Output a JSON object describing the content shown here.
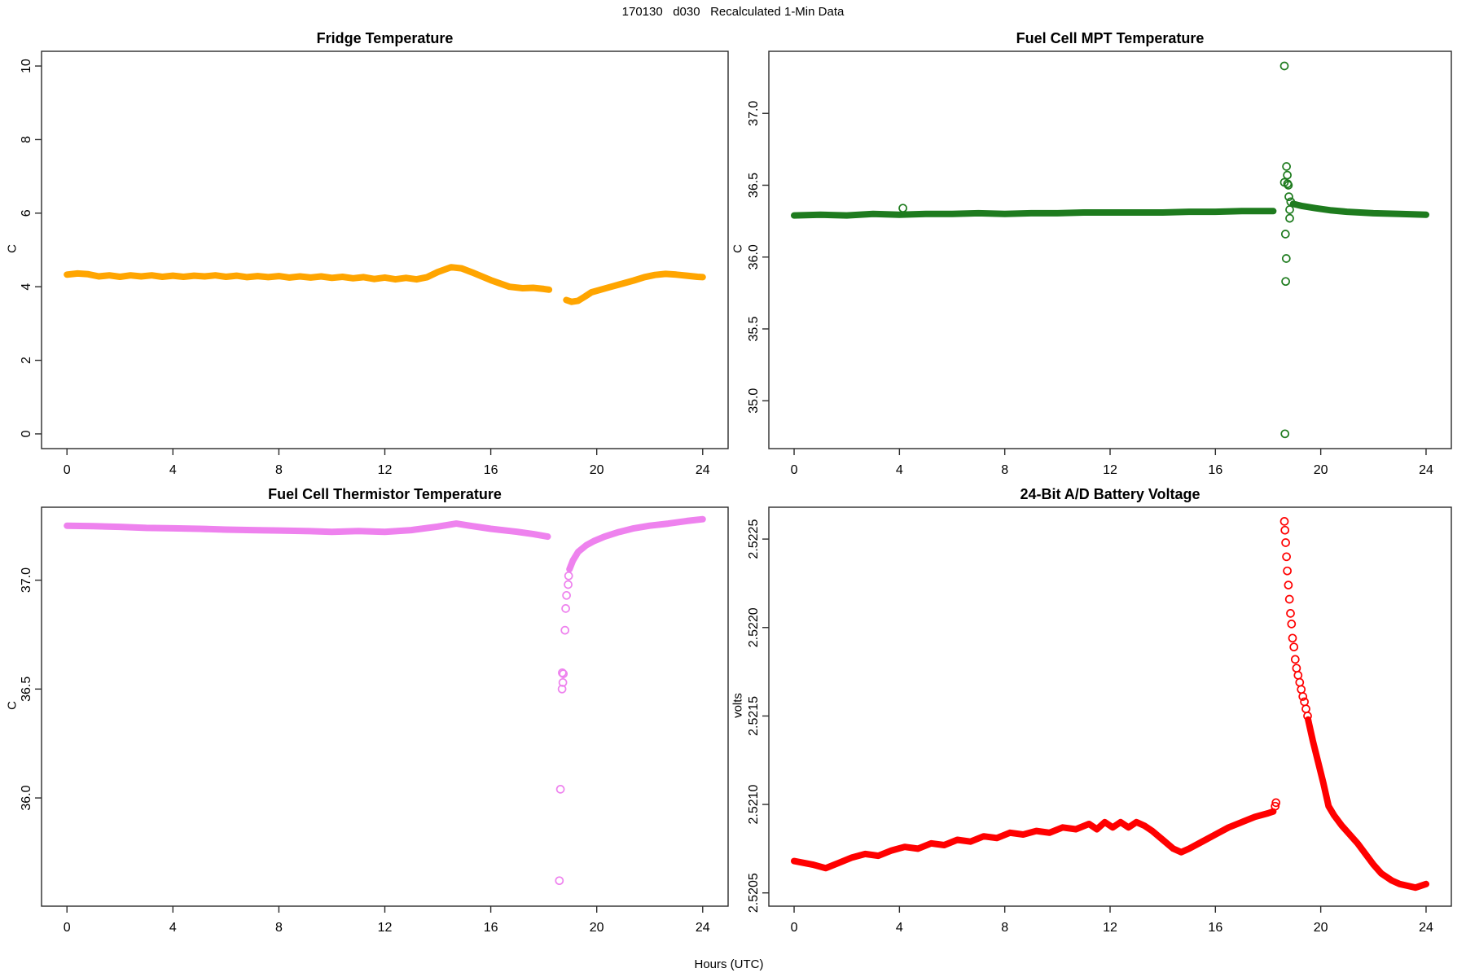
{
  "figure": {
    "main_title": "170130   d030   Recalculated 1-Min Data",
    "shared_xlabel": "Hours (UTC)",
    "background_color": "#ffffff",
    "axis_color": "#2b2b2b"
  },
  "chart_data": [
    {
      "id": "fridge",
      "position": "top-left",
      "type": "scatter",
      "title": "Fridge Temperature",
      "ylabel": "C",
      "point_color": "#FFA500",
      "x_ticks": [
        "0",
        "4",
        "8",
        "12",
        "16",
        "20",
        "24"
      ],
      "x_tick_values": [
        0,
        4,
        8,
        12,
        16,
        20,
        24
      ],
      "y_ticks": [
        "0",
        "2",
        "4",
        "6",
        "8",
        "10"
      ],
      "y_tick_values": [
        0,
        2,
        4,
        6,
        8,
        10
      ],
      "xlim": [
        -0.96,
        24.96
      ],
      "ylim": [
        -0.4,
        10.4
      ],
      "grid": false,
      "data_gap_hours": [
        18.2,
        18.85
      ],
      "line_segments": [
        [
          [
            0,
            4.33
          ],
          [
            0.4,
            4.36
          ],
          [
            0.8,
            4.34
          ],
          [
            1.2,
            4.28
          ],
          [
            1.6,
            4.31
          ],
          [
            2,
            4.27
          ],
          [
            2.4,
            4.31
          ],
          [
            2.8,
            4.28
          ],
          [
            3.2,
            4.31
          ],
          [
            3.6,
            4.27
          ],
          [
            4,
            4.3
          ],
          [
            4.4,
            4.27
          ],
          [
            4.8,
            4.3
          ],
          [
            5.2,
            4.28
          ],
          [
            5.6,
            4.31
          ],
          [
            6,
            4.27
          ],
          [
            6.4,
            4.3
          ],
          [
            6.8,
            4.26
          ],
          [
            7.2,
            4.29
          ],
          [
            7.6,
            4.26
          ],
          [
            8,
            4.29
          ],
          [
            8.4,
            4.25
          ],
          [
            8.8,
            4.28
          ],
          [
            9.2,
            4.25
          ],
          [
            9.6,
            4.28
          ],
          [
            10,
            4.24
          ],
          [
            10.4,
            4.27
          ],
          [
            10.8,
            4.23
          ],
          [
            11.2,
            4.26
          ],
          [
            11.6,
            4.21
          ],
          [
            12,
            4.25
          ],
          [
            12.4,
            4.2
          ],
          [
            12.8,
            4.24
          ],
          [
            13.2,
            4.2
          ],
          [
            13.6,
            4.26
          ],
          [
            14,
            4.4
          ],
          [
            14.5,
            4.53
          ],
          [
            14.9,
            4.5
          ],
          [
            15.3,
            4.39
          ],
          [
            16,
            4.18
          ],
          [
            16.7,
            4.0
          ],
          [
            17.2,
            3.96
          ],
          [
            17.6,
            3.97
          ],
          [
            18,
            3.94
          ],
          [
            18.2,
            3.92
          ]
        ],
        [
          [
            18.85,
            3.64
          ],
          [
            19.05,
            3.59
          ],
          [
            19.3,
            3.62
          ],
          [
            19.55,
            3.73
          ],
          [
            19.8,
            3.85
          ],
          [
            20.2,
            3.93
          ],
          [
            20.6,
            4.01
          ],
          [
            21,
            4.09
          ],
          [
            21.4,
            4.17
          ],
          [
            21.8,
            4.26
          ],
          [
            22.2,
            4.32
          ],
          [
            22.6,
            4.35
          ],
          [
            23,
            4.33
          ],
          [
            23.4,
            4.3
          ],
          [
            23.8,
            4.27
          ],
          [
            24,
            4.26
          ]
        ]
      ],
      "outlier_points": []
    },
    {
      "id": "mpt",
      "position": "top-right",
      "type": "scatter",
      "title": "Fuel Cell MPT Temperature",
      "ylabel": "C",
      "point_color": "#1E7B1E",
      "x_ticks": [
        "0",
        "4",
        "8",
        "12",
        "16",
        "20",
        "24"
      ],
      "x_tick_values": [
        0,
        4,
        8,
        12,
        16,
        20,
        24
      ],
      "y_ticks": [
        "35.0",
        "35.5",
        "36.0",
        "36.5",
        "37.0"
      ],
      "y_tick_values": [
        35.0,
        35.5,
        36.0,
        36.5,
        37.0
      ],
      "xlim": [
        -0.96,
        24.96
      ],
      "ylim": [
        34.667,
        37.432
      ],
      "grid": false,
      "data_gap_hours": [
        18.2,
        18.95
      ],
      "line_segments": [
        [
          [
            0,
            36.29
          ],
          [
            1,
            36.295
          ],
          [
            2,
            36.29
          ],
          [
            3,
            36.3
          ],
          [
            4,
            36.295
          ],
          [
            5,
            36.3
          ],
          [
            6,
            36.3
          ],
          [
            7,
            36.305
          ],
          [
            8,
            36.3
          ],
          [
            9,
            36.305
          ],
          [
            10,
            36.305
          ],
          [
            11,
            36.31
          ],
          [
            12,
            36.31
          ],
          [
            13,
            36.31
          ],
          [
            14,
            36.31
          ],
          [
            15,
            36.315
          ],
          [
            16,
            36.315
          ],
          [
            17,
            36.32
          ],
          [
            17.8,
            36.32
          ],
          [
            18.2,
            36.32
          ]
        ],
        [
          [
            18.95,
            36.37
          ],
          [
            19.3,
            36.355
          ],
          [
            19.8,
            36.34
          ],
          [
            20.4,
            36.325
          ],
          [
            21,
            36.315
          ],
          [
            22,
            36.305
          ],
          [
            23,
            36.3
          ],
          [
            24,
            36.295
          ]
        ]
      ],
      "outlier_points": [
        [
          4.13,
          36.34
        ],
        [
          18.62,
          37.33
        ],
        [
          18.7,
          36.63
        ],
        [
          18.73,
          36.57
        ],
        [
          18.62,
          36.52
        ],
        [
          18.74,
          36.51
        ],
        [
          18.77,
          36.5
        ],
        [
          18.79,
          36.42
        ],
        [
          18.86,
          36.385
        ],
        [
          18.82,
          36.33
        ],
        [
          18.82,
          36.27
        ],
        [
          18.66,
          36.16
        ],
        [
          18.69,
          35.99
        ],
        [
          18.67,
          35.83
        ],
        [
          18.64,
          34.77
        ]
      ]
    },
    {
      "id": "thermistor",
      "position": "bottom-left",
      "type": "scatter",
      "title": "Fuel Cell Thermistor Temperature",
      "ylabel": "C",
      "point_color": "#EE82EE",
      "x_ticks": [
        "0",
        "4",
        "8",
        "12",
        "16",
        "20",
        "24"
      ],
      "x_tick_values": [
        0,
        4,
        8,
        12,
        16,
        20,
        24
      ],
      "y_ticks": [
        "36.0",
        "36.5",
        "37.0"
      ],
      "y_tick_values": [
        36.0,
        36.5,
        37.0
      ],
      "xlim": [
        -0.96,
        24.96
      ],
      "ylim": [
        35.503,
        37.335
      ],
      "grid": false,
      "data_gap_hours": [
        18.15,
        18.97
      ],
      "line_segments": [
        [
          [
            0,
            37.25
          ],
          [
            1,
            37.248
          ],
          [
            2,
            37.245
          ],
          [
            3,
            37.24
          ],
          [
            4,
            37.238
          ],
          [
            5,
            37.236
          ],
          [
            6,
            37.232
          ],
          [
            7,
            37.23
          ],
          [
            8,
            37.228
          ],
          [
            9,
            37.226
          ],
          [
            10,
            37.222
          ],
          [
            11,
            37.226
          ],
          [
            12,
            37.222
          ],
          [
            13,
            37.23
          ],
          [
            14,
            37.246
          ],
          [
            14.7,
            37.26
          ],
          [
            15.2,
            37.25
          ],
          [
            16,
            37.236
          ],
          [
            17,
            37.222
          ],
          [
            17.6,
            37.212
          ],
          [
            18.15,
            37.2
          ]
        ],
        [
          [
            18.97,
            37.05
          ],
          [
            19.1,
            37.09
          ],
          [
            19.3,
            37.13
          ],
          [
            19.6,
            37.16
          ],
          [
            19.9,
            37.18
          ],
          [
            20.3,
            37.2
          ],
          [
            20.8,
            37.22
          ],
          [
            21.4,
            37.238
          ],
          [
            22,
            37.25
          ],
          [
            22.7,
            37.26
          ],
          [
            23.4,
            37.272
          ],
          [
            24,
            37.28
          ]
        ]
      ],
      "outlier_points": [
        [
          18.59,
          35.62
        ],
        [
          18.63,
          36.04
        ],
        [
          18.69,
          36.5
        ],
        [
          18.7,
          36.575
        ],
        [
          18.72,
          36.53
        ],
        [
          18.74,
          36.57
        ],
        [
          18.8,
          36.77
        ],
        [
          18.83,
          36.87
        ],
        [
          18.86,
          36.93
        ],
        [
          18.92,
          36.98
        ],
        [
          18.94,
          37.02
        ]
      ]
    },
    {
      "id": "battery",
      "position": "bottom-right",
      "type": "scatter",
      "title": "24-Bit A/D Battery Voltage",
      "ylabel": "volts",
      "point_color": "#FF0000",
      "x_ticks": [
        "0",
        "4",
        "8",
        "12",
        "16",
        "20",
        "24"
      ],
      "x_tick_values": [
        0,
        4,
        8,
        12,
        16,
        20,
        24
      ],
      "y_ticks": [
        "2.5205",
        "2.5210",
        "2.5215",
        "2.5220",
        "2.5225"
      ],
      "y_tick_values": [
        2.5205,
        2.521,
        2.5215,
        2.522,
        2.5225
      ],
      "xlim": [
        -0.96,
        24.96
      ],
      "ylim": [
        2.520425,
        2.52268
      ],
      "grid": false,
      "data_gap_hours": [
        18.3,
        18.62
      ],
      "line_segments": [
        [
          [
            0,
            2.52068
          ],
          [
            0.7,
            2.52066
          ],
          [
            1.2,
            2.52064
          ],
          [
            1.7,
            2.52067
          ],
          [
            2.2,
            2.5207
          ],
          [
            2.7,
            2.52072
          ],
          [
            3.2,
            2.52071
          ],
          [
            3.7,
            2.52074
          ],
          [
            4.2,
            2.52076
          ],
          [
            4.7,
            2.52075
          ],
          [
            5.2,
            2.52078
          ],
          [
            5.7,
            2.52077
          ],
          [
            6.2,
            2.5208
          ],
          [
            6.7,
            2.52079
          ],
          [
            7.2,
            2.52082
          ],
          [
            7.7,
            2.52081
          ],
          [
            8.2,
            2.52084
          ],
          [
            8.7,
            2.52083
          ],
          [
            9.2,
            2.52085
          ],
          [
            9.7,
            2.52084
          ],
          [
            10.2,
            2.52087
          ],
          [
            10.7,
            2.52086
          ],
          [
            11.2,
            2.52089
          ],
          [
            11.5,
            2.52086
          ],
          [
            11.8,
            2.5209
          ],
          [
            12.1,
            2.52087
          ],
          [
            12.4,
            2.5209
          ],
          [
            12.7,
            2.52087
          ],
          [
            13.0,
            2.5209
          ],
          [
            13.3,
            2.52088
          ],
          [
            13.6,
            2.52085
          ],
          [
            14.0,
            2.5208
          ],
          [
            14.4,
            2.52075
          ],
          [
            14.7,
            2.52073
          ],
          [
            15.0,
            2.52075
          ],
          [
            15.5,
            2.52079
          ],
          [
            16.0,
            2.52083
          ],
          [
            16.5,
            2.52087
          ],
          [
            17.0,
            2.5209
          ],
          [
            17.5,
            2.52093
          ],
          [
            18.0,
            2.52095
          ],
          [
            18.2,
            2.52096
          ]
        ],
        [
          [
            19.52,
            2.52148
          ],
          [
            19.7,
            2.52136
          ],
          [
            19.9,
            2.52124
          ],
          [
            20.1,
            2.52112
          ],
          [
            20.3,
            2.52099
          ],
          [
            20.5,
            2.52094
          ],
          [
            20.8,
            2.52088
          ],
          [
            21.1,
            2.52083
          ],
          [
            21.4,
            2.52078
          ],
          [
            21.7,
            2.52072
          ],
          [
            22.0,
            2.52066
          ],
          [
            22.3,
            2.52061
          ],
          [
            22.7,
            2.52057
          ],
          [
            23.0,
            2.52055
          ],
          [
            23.3,
            2.52054
          ],
          [
            23.6,
            2.52053
          ],
          [
            24.0,
            2.52055
          ]
        ]
      ],
      "outlier_points": [
        [
          18.27,
          2.52099
        ],
        [
          18.3,
          2.52101
        ],
        [
          18.62,
          2.5226
        ],
        [
          18.64,
          2.52255
        ],
        [
          18.67,
          2.52248
        ],
        [
          18.7,
          2.5224
        ],
        [
          18.73,
          2.52232
        ],
        [
          18.77,
          2.52224
        ],
        [
          18.81,
          2.52216
        ],
        [
          18.85,
          2.52208
        ],
        [
          18.89,
          2.52202
        ],
        [
          18.93,
          2.52194
        ],
        [
          18.98,
          2.52189
        ],
        [
          19.03,
          2.52182
        ],
        [
          19.08,
          2.52177
        ],
        [
          19.14,
          2.52173
        ],
        [
          19.2,
          2.52169
        ],
        [
          19.26,
          2.52165
        ],
        [
          19.32,
          2.52161
        ],
        [
          19.38,
          2.52158
        ],
        [
          19.44,
          2.52154
        ],
        [
          19.5,
          2.5215
        ]
      ]
    }
  ]
}
